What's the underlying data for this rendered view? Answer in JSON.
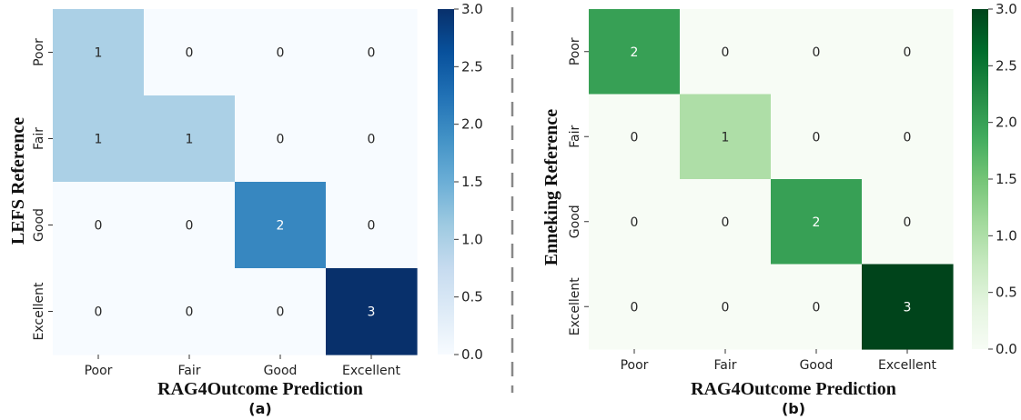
{
  "chart_data": [
    {
      "type": "heatmap",
      "panel_label": "(a)",
      "xlabel": "RAG4Outcome Prediction",
      "ylabel": "LEFS Reference",
      "x_categories": [
        "Poor",
        "Fair",
        "Good",
        "Excellent"
      ],
      "y_categories": [
        "Poor",
        "Fair",
        "Good",
        "Excellent"
      ],
      "values": [
        [
          1,
          0,
          0,
          0
        ],
        [
          1,
          1,
          0,
          0
        ],
        [
          0,
          0,
          2,
          0
        ],
        [
          0,
          0,
          0,
          3
        ]
      ],
      "colorbar_range": [
        0,
        3
      ],
      "colorbar_ticks": [
        "3.0",
        "2.5",
        "2.0",
        "1.5",
        "1.0",
        "0.5",
        "0.0"
      ],
      "colormap": "Blues",
      "colors": {
        "low": "#f7fbff",
        "high": "#0b2f6a"
      }
    },
    {
      "type": "heatmap",
      "panel_label": "(b)",
      "xlabel": "RAG4Outcome Prediction",
      "ylabel": "Enneking Reference",
      "x_categories": [
        "Poor",
        "Fair",
        "Good",
        "Excellent"
      ],
      "y_categories": [
        "Poor",
        "Fair",
        "Good",
        "Excellent"
      ],
      "values": [
        [
          2,
          0,
          0,
          0
        ],
        [
          0,
          1,
          0,
          0
        ],
        [
          0,
          0,
          2,
          0
        ],
        [
          0,
          0,
          0,
          3
        ]
      ],
      "colorbar_range": [
        0,
        3
      ],
      "colorbar_ticks": [
        "3.0",
        "2.5",
        "2.0",
        "1.5",
        "1.0",
        "0.5",
        "0.0"
      ],
      "colormap": "Greens",
      "colors": {
        "low": "#f7fcf5",
        "high": "#1d4a24"
      }
    }
  ]
}
